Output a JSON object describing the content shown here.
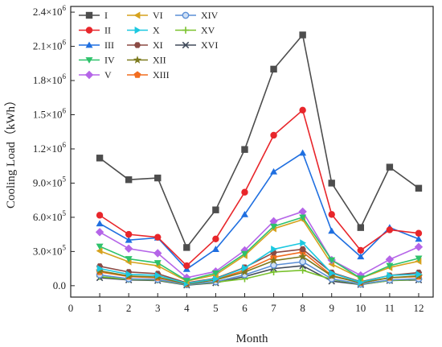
{
  "chart_data": {
    "type": "line",
    "title": "",
    "xlabel": "Month",
    "ylabel": "Cooling Load（kWh）",
    "xlim": [
      0,
      12.5
    ],
    "ylim": [
      -100000,
      2450000
    ],
    "x_ticks": [
      0,
      1,
      2,
      3,
      4,
      5,
      6,
      7,
      8,
      9,
      10,
      11,
      12
    ],
    "y_ticks": [
      {
        "value": 0,
        "mantissa": "0.0",
        "exponent": ""
      },
      {
        "value": 300000,
        "mantissa": "3.0×10",
        "exponent": "5"
      },
      {
        "value": 600000,
        "mantissa": "6.0×10",
        "exponent": "5"
      },
      {
        "value": 900000,
        "mantissa": "9.0×10",
        "exponent": "5"
      },
      {
        "value": 1200000,
        "mantissa": "1.2×10",
        "exponent": "6"
      },
      {
        "value": 1500000,
        "mantissa": "1.5×10",
        "exponent": "6"
      },
      {
        "value": 1800000,
        "mantissa": "1.8×10",
        "exponent": "6"
      },
      {
        "value": 2100000,
        "mantissa": "2.1×10",
        "exponent": "6"
      },
      {
        "value": 2400000,
        "mantissa": "2.4×10",
        "exponent": "6"
      }
    ],
    "grid": false,
    "legend_position": "top-left",
    "legend_columns": 3,
    "x": [
      1,
      2,
      3,
      4,
      5,
      6,
      7,
      8,
      9,
      10,
      11,
      12
    ],
    "series": [
      {
        "name": "I",
        "color": "#4d4d4d",
        "marker": "square",
        "values": [
          1120000,
          930000,
          945000,
          335000,
          665000,
          1195000,
          1900000,
          2200000,
          900000,
          510000,
          1040000,
          855000
        ]
      },
      {
        "name": "II",
        "color": "#e8262b",
        "marker": "circle",
        "values": [
          618000,
          450000,
          425000,
          175000,
          410000,
          820000,
          1320000,
          1540000,
          625000,
          310000,
          490000,
          460000
        ]
      },
      {
        "name": "III",
        "color": "#1f6fe0",
        "marker": "triangle-up",
        "values": [
          545000,
          400000,
          420000,
          145000,
          320000,
          625000,
          1000000,
          1165000,
          480000,
          255000,
          510000,
          410000
        ]
      },
      {
        "name": "IV",
        "color": "#2ec26b",
        "marker": "triangle-down",
        "values": [
          345000,
          235000,
          200000,
          45000,
          110000,
          280000,
          520000,
          600000,
          225000,
          65000,
          175000,
          240000
        ]
      },
      {
        "name": "V",
        "color": "#b565e8",
        "marker": "diamond",
        "values": [
          470000,
          325000,
          285000,
          70000,
          125000,
          310000,
          565000,
          650000,
          225000,
          90000,
          230000,
          340000
        ]
      },
      {
        "name": "VI",
        "color": "#d6a21e",
        "marker": "triangle-left",
        "values": [
          305000,
          210000,
          175000,
          40000,
          95000,
          265000,
          500000,
          580000,
          190000,
          65000,
          160000,
          215000
        ]
      },
      {
        "name": "X",
        "color": "#1cc8e0",
        "marker": "triangle-right",
        "values": [
          150000,
          100000,
          90000,
          20000,
          60000,
          155000,
          320000,
          375000,
          110000,
          30000,
          90000,
          100000
        ]
      },
      {
        "name": "XI",
        "color": "#8b4a44",
        "marker": "hexagon",
        "values": [
          170000,
          120000,
          105000,
          25000,
          65000,
          160000,
          290000,
          320000,
          115000,
          35000,
          90000,
          115000
        ]
      },
      {
        "name": "XII",
        "color": "#7c7a1e",
        "marker": "star",
        "values": [
          130000,
          85000,
          75000,
          15000,
          50000,
          120000,
          220000,
          255000,
          85000,
          25000,
          70000,
          85000
        ]
      },
      {
        "name": "XIII",
        "color": "#f26d1f",
        "marker": "pentagon",
        "values": [
          120000,
          80000,
          70000,
          15000,
          55000,
          135000,
          250000,
          295000,
          90000,
          25000,
          70000,
          80000
        ]
      },
      {
        "name": "XIV",
        "color": "#5b8fd6",
        "marker": "circle-open",
        "values": [
          95000,
          60000,
          55000,
          10000,
          35000,
          95000,
          180000,
          210000,
          60000,
          15000,
          50000,
          60000
        ]
      },
      {
        "name": "XV",
        "color": "#7ac22e",
        "marker": "plus",
        "values": [
          80000,
          55000,
          50000,
          8000,
          30000,
          60000,
          120000,
          135000,
          55000,
          12000,
          45000,
          55000
        ]
      },
      {
        "name": "XVI",
        "color": "#404a5a",
        "marker": "x",
        "values": [
          70000,
          50000,
          45000,
          5000,
          25000,
          80000,
          150000,
          175000,
          40000,
          10000,
          45000,
          50000
        ]
      }
    ]
  }
}
